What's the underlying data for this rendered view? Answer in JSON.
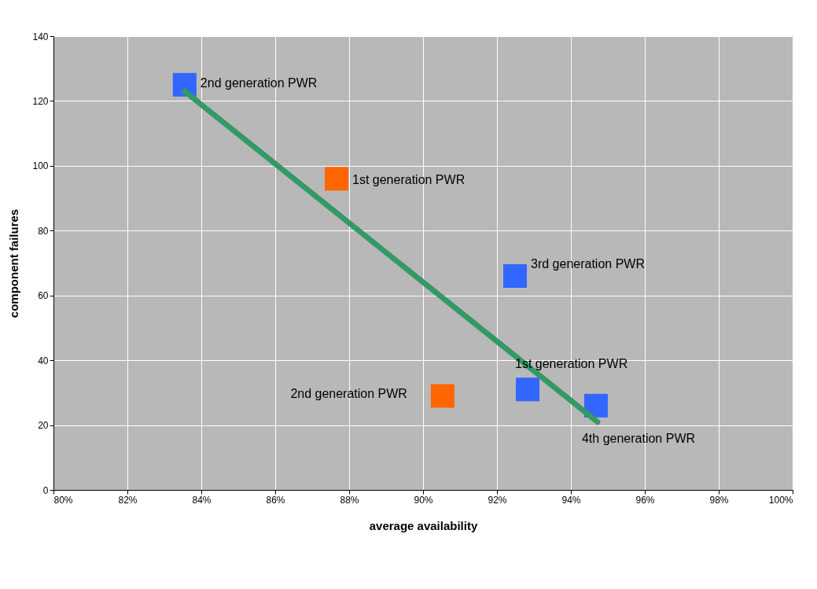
{
  "chart_data": {
    "type": "scatter",
    "xlabel": "average availability",
    "ylabel": "component failures",
    "xlim": [
      80,
      100
    ],
    "ylim": [
      0,
      140
    ],
    "xticks": [
      {
        "value": 80,
        "label": "80%"
      },
      {
        "value": 82,
        "label": "82%"
      },
      {
        "value": 84,
        "label": "84%"
      },
      {
        "value": 86,
        "label": "86%"
      },
      {
        "value": 88,
        "label": "88%"
      },
      {
        "value": 90,
        "label": "90%"
      },
      {
        "value": 92,
        "label": "92%"
      },
      {
        "value": 94,
        "label": "94%"
      },
      {
        "value": 96,
        "label": "96%"
      },
      {
        "value": 98,
        "label": "98%"
      },
      {
        "value": 100,
        "label": "100%"
      }
    ],
    "yticks": [
      0,
      20,
      40,
      60,
      80,
      100,
      120,
      140
    ],
    "grid": true,
    "marker": "square",
    "series": [
      {
        "color": "#3366ff",
        "x": [
          83.55,
          92.49,
          92.83,
          94.68
        ],
        "values": [
          125,
          66,
          31,
          26
        ]
      },
      {
        "color": "#ff6600",
        "x": [
          87.66,
          90.53
        ],
        "values": [
          96,
          29
        ]
      },
      {
        "type": "line",
        "marker": "none",
        "color": "#339966",
        "x": [
          83.55,
          94.72
        ],
        "values": [
          123,
          21
        ]
      }
    ],
    "annotations": [
      {
        "text": "2nd generation PWR",
        "x": 83.55,
        "y": 125
      },
      {
        "text": "1st generation PWR",
        "x": 87.66,
        "y": 96
      },
      {
        "text": "3rd generation PWR",
        "x": 92.49,
        "y": 66
      },
      {
        "text": "1st generation PWR",
        "x": 92.83,
        "y": 31
      },
      {
        "text": "2nd generation PWR",
        "x": 90.53,
        "y": 29
      },
      {
        "text": "4th generation PWR",
        "x": 94.68,
        "y": 26
      }
    ]
  }
}
